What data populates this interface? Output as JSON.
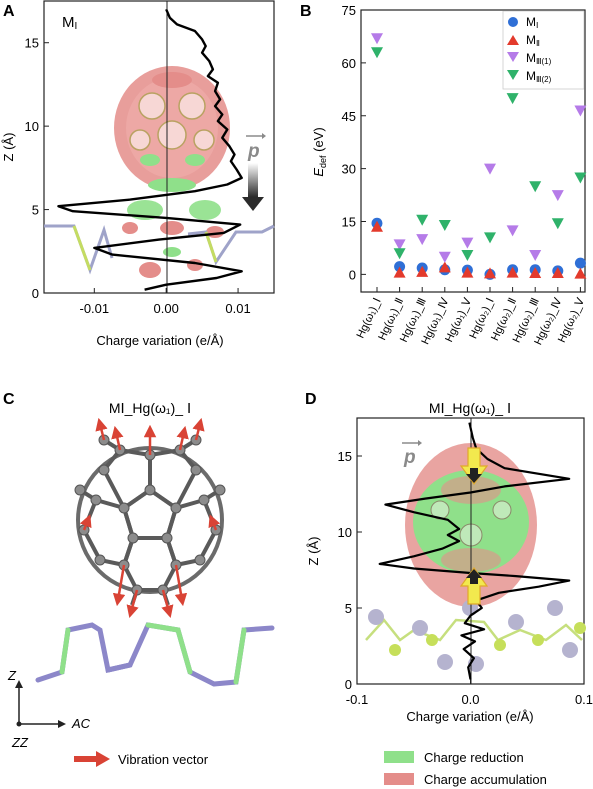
{
  "colors": {
    "blue": "#2f6fd6",
    "red": "#e33a2c",
    "purple": "#b57be8",
    "green": "#2fb26a",
    "accum": "#e48d8a",
    "reduct": "#8fe08a",
    "atom_grey": "#9aa0a8",
    "sub_green": "#b7e04e",
    "sub_blue": "#8c87c9",
    "arrow_red": "#d94335",
    "arrow_yellow": "#f2e94e"
  },
  "panelA": {
    "letter": "A",
    "label": "M",
    "label_sub": "I",
    "ylabel": "Z (Å)",
    "yticks": [
      "0",
      "5",
      "10",
      "15"
    ],
    "xticks": [
      "-0.01",
      "0.00",
      "0.01"
    ],
    "xlabel": "Charge variation (e/Å)",
    "p_label": "p"
  },
  "panelB": {
    "letter": "B",
    "ylabel_main": "E",
    "ylabel_sub": "def",
    "ylabel_unit": " (eV)",
    "yticks": [
      "0",
      "15",
      "30",
      "45",
      "60",
      "75"
    ],
    "xticks": [
      "Hg(ω₁)_Ⅰ",
      "Hg(ω₁)_Ⅱ",
      "Hg(ω₁)_Ⅲ",
      "Hg(ω₁)_Ⅳ",
      "Hg(ω₁)_Ⅴ",
      "Hg(ω₂)_Ⅰ",
      "Hg(ω₂)_Ⅱ",
      "Hg(ω₂)_Ⅲ",
      "Hg(ω₂)_Ⅳ",
      "Hg(ω₂)_Ⅴ"
    ],
    "legend": [
      {
        "main": "M",
        "sub": "Ⅰ"
      },
      {
        "main": "M",
        "sub": "Ⅱ"
      },
      {
        "main": "M",
        "sub": "Ⅲ(1)"
      },
      {
        "main": "M",
        "sub": "Ⅲ(2)"
      }
    ]
  },
  "panelC": {
    "letter": "C",
    "title": "MⅠ_Hg(ω₁)_ Ⅰ",
    "axis_z": "Z",
    "axis_ac": "AC",
    "axis_zz": "ZZ",
    "vibration_label": "Vibration vector"
  },
  "panelD": {
    "letter": "D",
    "title": "MⅠ_Hg(ω₁)_ Ⅰ",
    "ylabel": "Z (Å)",
    "yticks": [
      "0",
      "5",
      "10",
      "15"
    ],
    "xticks": [
      "-0.1",
      "0.0",
      "0.1"
    ],
    "xlabel": "Charge variation (e/Å)",
    "p_label": "p"
  },
  "legend_bottom": {
    "reduction": "Charge reduction",
    "accumulation": "Charge accumulation"
  },
  "chart_data": [
    {
      "type": "scatter",
      "ylabel": "E_def (eV)",
      "ylim": [
        -5,
        75
      ],
      "categories": [
        "Hg(ω₁)_Ⅰ",
        "Hg(ω₁)_Ⅱ",
        "Hg(ω₁)_Ⅲ",
        "Hg(ω₁)_Ⅳ",
        "Hg(ω₁)_Ⅴ",
        "Hg(ω₂)_Ⅰ",
        "Hg(ω₂)_Ⅱ",
        "Hg(ω₂)_Ⅲ",
        "Hg(ω₂)_Ⅳ",
        "Hg(ω₂)_Ⅴ"
      ],
      "legend_position": "top-right",
      "series": [
        {
          "name": "MⅠ",
          "marker": "circle",
          "values": [
            14.5,
            2.2,
            1.8,
            1.3,
            1.2,
            0.0,
            1.3,
            1.3,
            1.0,
            3.2
          ]
        },
        {
          "name": "MⅡ",
          "marker": "triangle-up",
          "values": [
            13.5,
            0.5,
            0.7,
            2.0,
            0.5,
            0.3,
            0.5,
            0.4,
            0.4,
            0.2
          ]
        },
        {
          "name": "MⅢ(1)",
          "marker": "triangle-down",
          "values": [
            67.0,
            8.5,
            10.0,
            5.0,
            9.0,
            30.0,
            12.5,
            5.5,
            22.5,
            46.5
          ]
        },
        {
          "name": "MⅢ(2)",
          "marker": "triangle-down",
          "values": [
            63.0,
            6.0,
            15.5,
            14.0,
            5.5,
            10.5,
            50.0,
            25.0,
            14.5,
            27.5
          ]
        }
      ]
    },
    {
      "type": "line",
      "xlabel": "Charge variation (e/Å)",
      "ylabel": "Z (Å)",
      "xlim": [
        -0.017,
        0.015
      ],
      "ylim": [
        0,
        17.5
      ],
      "xticks": [
        -0.01,
        0.0,
        0.01
      ],
      "yticks": [
        0,
        5,
        10,
        15
      ],
      "points": [
        [
          0.0,
          17.0
        ],
        [
          0.0005,
          16.5
        ],
        [
          0.0015,
          16.1
        ],
        [
          0.004,
          15.7
        ],
        [
          0.005,
          15.2
        ],
        [
          0.0055,
          14.8
        ],
        [
          0.005,
          14.4
        ],
        [
          0.006,
          13.9
        ],
        [
          0.0065,
          13.4
        ],
        [
          0.0058,
          13.0
        ],
        [
          0.0072,
          12.6
        ],
        [
          0.0068,
          12.1
        ],
        [
          0.0075,
          11.6
        ],
        [
          0.0068,
          11.2
        ],
        [
          0.0078,
          10.7
        ],
        [
          0.0072,
          10.3
        ],
        [
          0.0085,
          9.8
        ],
        [
          0.0078,
          9.3
        ],
        [
          0.0088,
          8.8
        ],
        [
          0.0095,
          8.3
        ],
        [
          0.009,
          7.9
        ],
        [
          0.0098,
          7.4
        ],
        [
          0.0105,
          6.9
        ],
        [
          0.0085,
          6.5
        ],
        [
          0.004,
          6.1
        ],
        [
          -0.005,
          5.6
        ],
        [
          -0.015,
          5.2
        ],
        [
          -0.013,
          4.9
        ],
        [
          0.0,
          4.5
        ],
        [
          0.0103,
          4.1
        ],
        [
          0.008,
          3.6
        ],
        [
          -0.001,
          3.2
        ],
        [
          -0.01,
          2.7
        ],
        [
          -0.0075,
          2.3
        ],
        [
          0.004,
          1.8
        ],
        [
          0.0105,
          1.3
        ],
        [
          0.007,
          0.9
        ],
        [
          0.0,
          0.5
        ],
        [
          -0.003,
          0.2
        ]
      ]
    },
    {
      "type": "line",
      "xlabel": "Charge variation (e/Å)",
      "ylabel": "Z (Å)",
      "xlim": [
        -0.1,
        0.1
      ],
      "ylim": [
        0,
        17.5
      ],
      "xticks": [
        -0.1,
        0.0,
        0.1
      ],
      "yticks": [
        0,
        5,
        10,
        15
      ],
      "points": [
        [
          -0.001,
          17.2
        ],
        [
          0.002,
          16.2
        ],
        [
          0.005,
          15.5
        ],
        [
          0.015,
          14.8
        ],
        [
          0.03,
          14.2
        ],
        [
          0.087,
          13.5
        ],
        [
          0.03,
          13.0
        ],
        [
          0.0,
          12.6
        ],
        [
          -0.04,
          12.2
        ],
        [
          -0.075,
          11.8
        ],
        [
          -0.05,
          11.3
        ],
        [
          -0.02,
          10.8
        ],
        [
          -0.01,
          10.2
        ],
        [
          -0.02,
          9.8
        ],
        [
          -0.01,
          9.4
        ],
        [
          -0.025,
          8.9
        ],
        [
          -0.05,
          8.4
        ],
        [
          -0.08,
          7.9
        ],
        [
          -0.05,
          7.6
        ],
        [
          0.0,
          7.3
        ],
        [
          0.04,
          7.1
        ],
        [
          0.087,
          6.8
        ],
        [
          0.06,
          6.4
        ],
        [
          0.025,
          6.0
        ],
        [
          0.005,
          5.5
        ],
        [
          0.01,
          5.0
        ],
        [
          0.0,
          4.5
        ],
        [
          -0.005,
          4.0
        ],
        [
          0.012,
          3.6
        ],
        [
          -0.008,
          3.2
        ],
        [
          0.004,
          2.8
        ],
        [
          -0.006,
          2.3
        ],
        [
          0.003,
          1.7
        ],
        [
          -0.002,
          1.1
        ],
        [
          0.0,
          0.3
        ]
      ]
    }
  ]
}
